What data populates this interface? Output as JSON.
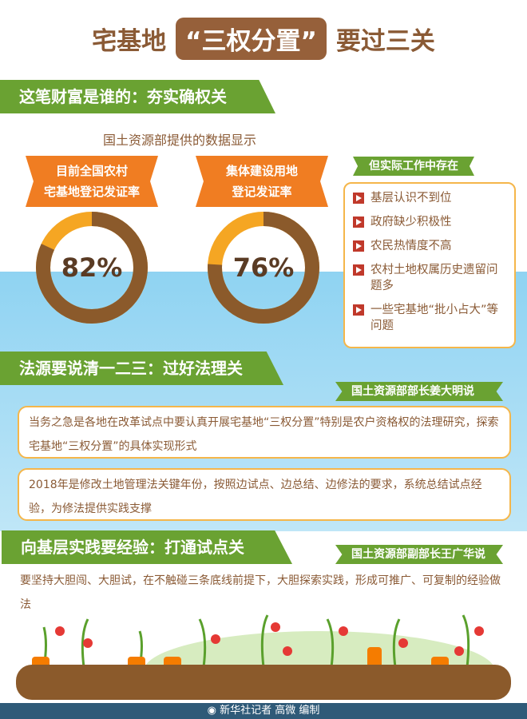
{
  "title": {
    "pre": "宅基地",
    "highlight": "“三权分置”",
    "post": "要过三关"
  },
  "section1": {
    "heading": "这笔财富是谁的：夯实确权关",
    "source": "国土资源部提供的数据显示",
    "stats": [
      {
        "label_line1": "目前全国农村",
        "label_line2": "宅基地登记发证率",
        "value": "82%",
        "percent": 82
      },
      {
        "label_line1": "集体建设用地",
        "label_line2": "登记发证率",
        "value": "76%",
        "percent": 76
      }
    ],
    "issues_tag": "但实际工作中存在",
    "issues": [
      "基层认识不到位",
      "政府缺少积极性",
      "农民热情度不高",
      "农村土地权属历史遗留问题多",
      "一些宅基地“批小占大”等问题"
    ]
  },
  "section2": {
    "heading": "法源要说清一二三：过好法理关",
    "speaker": "国土资源部部长姜大明说",
    "quotes": [
      "当务之急是各地在改革试点中要认真开展宅基地“三权分置”特别是农户资格权的法理研究，探索宅基地“三权分置”的具体实现形式",
      "2018年是修改土地管理法关键年份，按照边试点、边总结、边修法的要求，系统总结试点经验，为修法提供实践支撑"
    ]
  },
  "section3": {
    "heading": "向基层实践要经验：打通试点关",
    "speaker": "国土资源部副部长王广华说",
    "quote": "要坚持大胆闯、大胆试，在不触碰三条底线前提下，大胆探索实践，形成可推广、可复制的经验做法"
  },
  "footer": {
    "credit": "新华社记者 高微 编制"
  },
  "colors": {
    "brown": "#8a5a35",
    "green": "#6aa232",
    "orange": "#f07d22",
    "ring_fill": "#8b5a2b",
    "ring_rest": "#f5a623",
    "sky": "#8fd3f2",
    "footer": "#2f5a78"
  }
}
